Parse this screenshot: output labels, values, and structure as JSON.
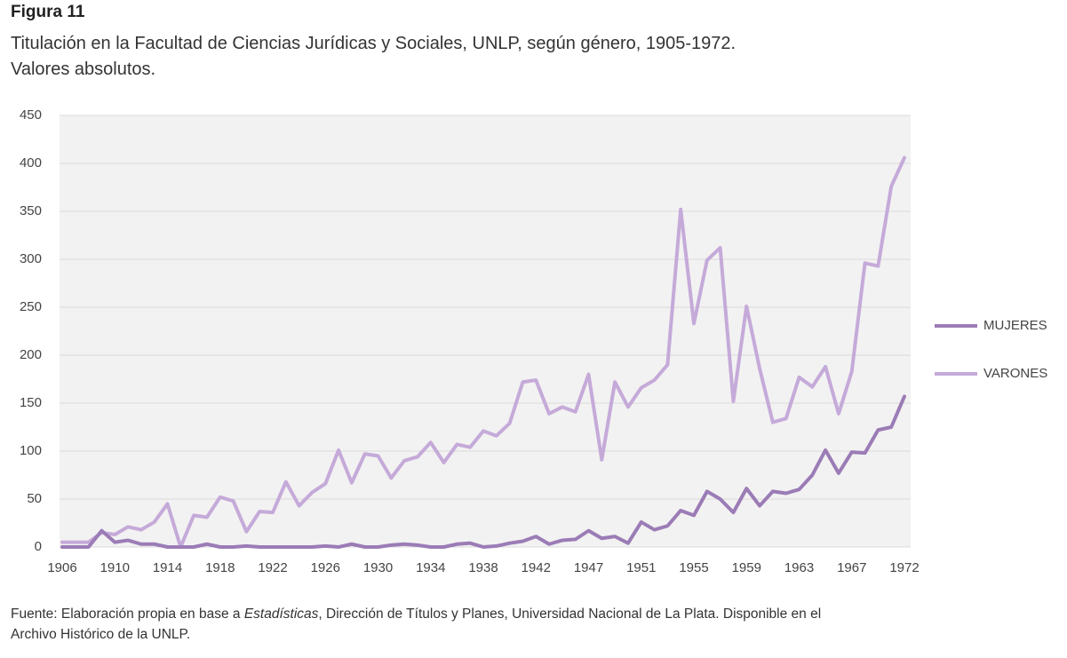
{
  "chart_data": {
    "type": "line",
    "title": "Figura 11",
    "subtitle": [
      "Titulación en la Facultad de Ciencias Jurídicas y Sociales, UNLP, según género, 1905-1972.",
      "Valores absolutos."
    ],
    "source": [
      "Fuente: Elaboración propia en base a ",
      "Estadísticas",
      ", Dirección de Títulos y Planes, Universidad Nacional de La Plata. Disponible en el",
      "Archivo Histórico de la UNLP."
    ],
    "categories": [
      "1906",
      null,
      null,
      null,
      "1910",
      null,
      null,
      null,
      "1914",
      null,
      null,
      null,
      "1918",
      null,
      null,
      null,
      "1922",
      null,
      null,
      null,
      "1926",
      null,
      null,
      null,
      "1930",
      null,
      null,
      null,
      "1934",
      null,
      null,
      null,
      "1938",
      null,
      null,
      null,
      "1942",
      null,
      null,
      null,
      "1947",
      null,
      null,
      null,
      "1951",
      null,
      null,
      null,
      "1955",
      null,
      null,
      null,
      "1959",
      null,
      null,
      null,
      "1963",
      null,
      null,
      null,
      "1967",
      null,
      null,
      null,
      "1972"
    ],
    "series": [
      {
        "name": "MUJERES",
        "color": "#9b7cb6",
        "values": [
          0,
          0,
          0,
          17,
          5,
          7,
          3,
          3,
          0,
          0,
          0,
          3,
          0,
          0,
          1,
          0,
          0,
          0,
          0,
          0,
          1,
          0,
          3,
          0,
          0,
          2,
          3,
          2,
          0,
          0,
          3,
          4,
          0,
          1,
          4,
          6,
          11,
          3,
          7,
          8,
          17,
          9,
          11,
          4,
          26,
          18,
          22,
          38,
          33,
          58,
          50,
          36,
          61,
          43,
          58,
          56,
          60,
          75,
          101,
          77,
          99,
          98,
          122,
          125,
          157
        ]
      },
      {
        "name": "VARONES",
        "color": "#c5aad9",
        "values": [
          5,
          5,
          5,
          15,
          13,
          21,
          18,
          26,
          45,
          0,
          33,
          31,
          52,
          48,
          16,
          37,
          36,
          68,
          43,
          57,
          66,
          101,
          67,
          97,
          95,
          72,
          90,
          94,
          109,
          88,
          107,
          104,
          121,
          116,
          129,
          172,
          174,
          139,
          146,
          141,
          180,
          91,
          172,
          146,
          166,
          174,
          190,
          352,
          233,
          299,
          312,
          152,
          251,
          186,
          130,
          134,
          177,
          167,
          188,
          139,
          183,
          296,
          293,
          376,
          406
        ]
      }
    ],
    "ylim": [
      0,
      450
    ],
    "yticks": [
      0,
      50,
      100,
      150,
      200,
      250,
      300,
      350,
      400,
      450
    ],
    "grid": true,
    "legend": "right"
  }
}
